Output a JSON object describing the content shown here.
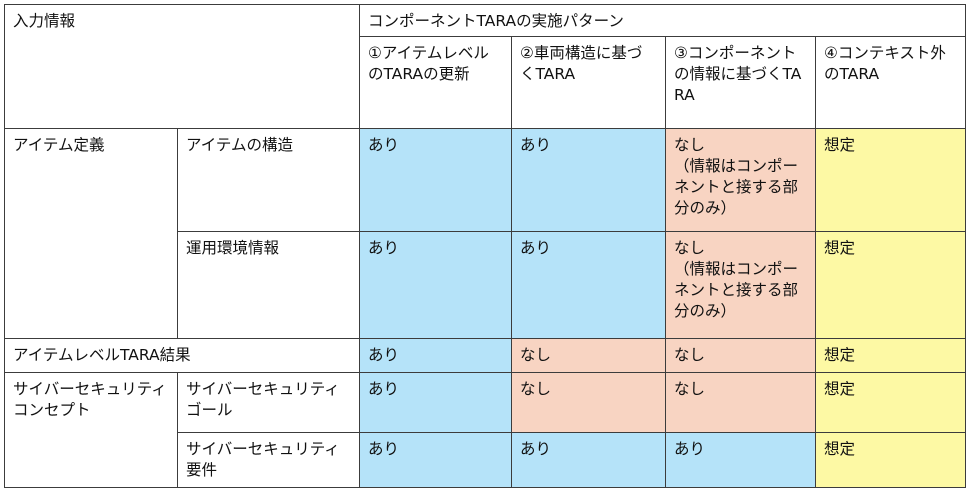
{
  "header": {
    "input_info": "入力情報",
    "pattern_title": "コンポーネントTARAの実施パターン",
    "patterns": [
      "①アイテムレベルのTARAの更新",
      "②車両構造に基づくTARA",
      "③コンポーネントの情報に基づくTARA",
      "④コンテキスト外のTARA"
    ]
  },
  "rows": [
    {
      "group": "アイテム定義",
      "sub": "アイテムの構造",
      "cells": [
        "あり",
        "あり",
        "なし\n（情報はコンポーネントと接する部分のみ）",
        "想定"
      ]
    },
    {
      "sub": "運用環境情報",
      "cells": [
        "あり",
        "あり",
        "なし\n（情報はコンポーネントと接する部分のみ）",
        "想定"
      ]
    },
    {
      "label": "アイテムレベルTARA結果",
      "cells": [
        "あり",
        "なし",
        "なし",
        "想定"
      ]
    },
    {
      "group": "サイバーセキュリティコンセプト",
      "sub": "サイバーセキュリティゴール",
      "cells": [
        "あり",
        "なし",
        "なし",
        "想定"
      ]
    },
    {
      "sub": "サイバーセキュリティ要件",
      "cells": [
        "あり",
        "あり",
        "あり",
        "想定"
      ]
    }
  ],
  "colors": {
    "present": "#b5e3f9",
    "absent": "#f8d4c2",
    "assumed": "#fdf9a4"
  }
}
